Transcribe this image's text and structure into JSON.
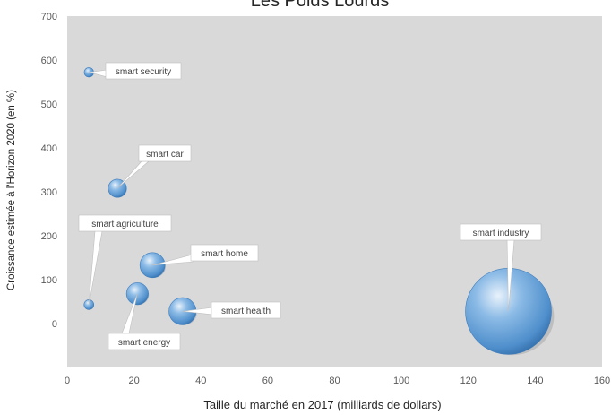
{
  "chart_data": {
    "type": "bubble",
    "title": "Les Poids Lourds",
    "xlabel": "Taille du marché en 2017 (milliards de dollars)",
    "ylabel": "Croissance estimée à l'Horizon 2020 (en %)",
    "xlim": [
      0,
      160
    ],
    "ylim": [
      -100,
      700
    ],
    "x_ticks": [
      0,
      20,
      40,
      60,
      80,
      100,
      120,
      140,
      160
    ],
    "y_ticks": [
      0,
      100,
      200,
      300,
      400,
      500,
      600,
      700
    ],
    "grid": false,
    "background": "#d9d9d9",
    "bubble_color": "#5b9bd5",
    "points": [
      {
        "label": "smart security",
        "x": 6.5,
        "y": 572,
        "size": 1.2
      },
      {
        "label": "smart car",
        "x": 15,
        "y": 308,
        "size": 4.5
      },
      {
        "label": "smart agriculture",
        "x": 6.5,
        "y": 43,
        "size": 1.3
      },
      {
        "label": "smart home",
        "x": 25.5,
        "y": 133,
        "size": 8.5
      },
      {
        "label": "smart energy",
        "x": 21,
        "y": 68,
        "size": 6.5
      },
      {
        "label": "smart health",
        "x": 34.5,
        "y": 28,
        "size": 10
      },
      {
        "label": "smart industry",
        "x": 132,
        "y": 28,
        "size": 100
      }
    ]
  }
}
